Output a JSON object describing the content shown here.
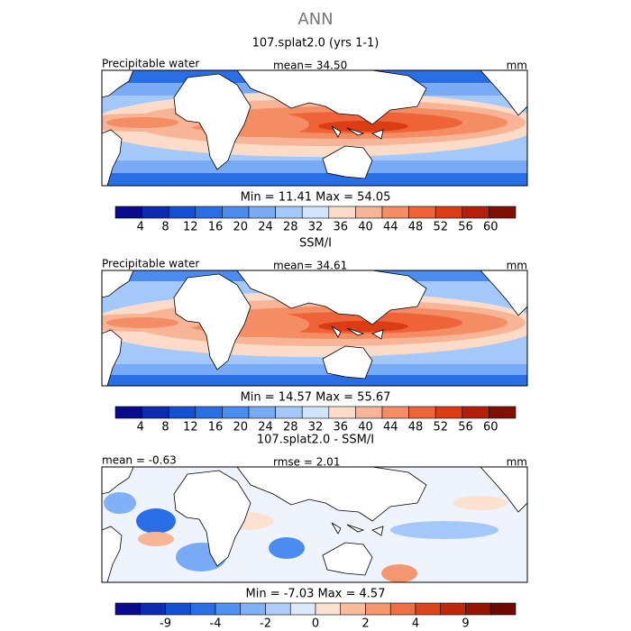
{
  "header": {
    "title": "ANN"
  },
  "panels": [
    {
      "title": "107.splat2.0 (yrs 1-1)",
      "left": "Precipitable water",
      "middle": "mean=  34.50",
      "right": "mm",
      "minmax": "Min =  11.41  Max =  54.05",
      "colorbar": {
        "colors": [
          "#0a0a8c",
          "#0c2cb4",
          "#1450d2",
          "#2a6ee6",
          "#4a8cf0",
          "#78aaf5",
          "#a5c8fa",
          "#d2e4fc",
          "#fcdcc8",
          "#f8b496",
          "#f48c64",
          "#ee6438",
          "#dc3c14",
          "#b41e0a",
          "#821002"
        ],
        "ticks": [
          4,
          8,
          12,
          16,
          20,
          24,
          28,
          32,
          36,
          40,
          44,
          48,
          52,
          56,
          60
        ]
      }
    },
    {
      "title": "SSM/I",
      "left": "Precipitable water",
      "middle": "mean=  34.61",
      "right": "mm",
      "minmax": "Min =  14.57  Max =  55.67",
      "colorbar": {
        "colors": [
          "#0a0a8c",
          "#0c2cb4",
          "#1450d2",
          "#2a6ee6",
          "#4a8cf0",
          "#78aaf5",
          "#a5c8fa",
          "#d2e4fc",
          "#fcdcc8",
          "#f8b496",
          "#f48c64",
          "#ee6438",
          "#dc3c14",
          "#b41e0a",
          "#821002"
        ],
        "ticks": [
          4,
          8,
          12,
          16,
          20,
          24,
          28,
          32,
          36,
          40,
          44,
          48,
          52,
          56,
          60
        ]
      }
    },
    {
      "title": "107.splat2.0 - SSM/I",
      "left": "mean =  -0.63",
      "middle": "rmse =   2.01",
      "right": "mm",
      "minmax": "Min =  -7.03  Max =   4.57",
      "colorbar": {
        "colors": [
          "#0a0a8c",
          "#0c2cb4",
          "#1450d2",
          "#2a6ee6",
          "#5090f0",
          "#82b0f6",
          "#b0ccfa",
          "#dce8fc",
          "#fce0d0",
          "#f8bc9c",
          "#f49670",
          "#ee6e46",
          "#dc461e",
          "#c0280c",
          "#961404",
          "#6e0800"
        ],
        "ticks": [
          -9,
          -4,
          -2,
          0,
          2,
          4,
          9
        ]
      }
    }
  ]
}
